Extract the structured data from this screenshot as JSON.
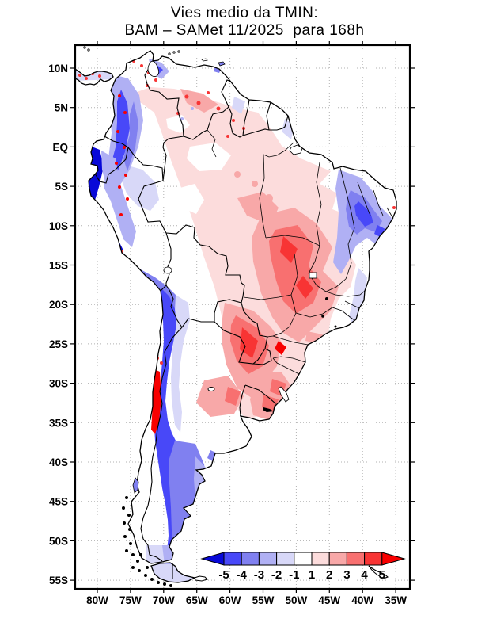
{
  "title": {
    "line1": "Vies medio da TMIN:",
    "line2": "BAM – SAMet 11/2025  para 168h"
  },
  "axes": {
    "lat_labels": [
      "10N",
      "5N",
      "EQ",
      "5S",
      "10S",
      "15S",
      "20S",
      "25S",
      "30S",
      "35S",
      "40S",
      "45S",
      "50S",
      "55S"
    ],
    "lon_labels": [
      "80W",
      "75W",
      "70W",
      "65W",
      "60W",
      "55W",
      "50W",
      "45W",
      "40W",
      "35W"
    ]
  },
  "colorbar": {
    "tick_labels": [
      "-5",
      "-4",
      "-3",
      "-2",
      "-1",
      "1",
      "2",
      "3",
      "4",
      "5"
    ],
    "colors": {
      "below": "#0808d8",
      "boxes": [
        "#4848f8",
        "#8080f0",
        "#b0b0f4",
        "#d8d8f8",
        "#ffffff",
        "#fcdcdc",
        "#f8a8a8",
        "#f87070",
        "#f83434"
      ],
      "above": "#f80000"
    }
  },
  "chart_data": {
    "type": "heatmap",
    "title": "Vies medio da TMIN: BAM – SAMet 11/2025 para 168h",
    "x_ticks": [
      "80W",
      "75W",
      "70W",
      "65W",
      "60W",
      "55W",
      "50W",
      "45W",
      "40W",
      "35W"
    ],
    "y_ticks": [
      "10N",
      "5N",
      "EQ",
      "5S",
      "10S",
      "15S",
      "20S",
      "25S",
      "30S",
      "35S",
      "40S",
      "45S",
      "50S",
      "55S"
    ],
    "colorbar_levels": [
      -5,
      -4,
      -3,
      -2,
      -1,
      1,
      2,
      3,
      4,
      5
    ],
    "colorbar_palette": [
      "#0808d8",
      "#4848f8",
      "#8080f0",
      "#b0b0f4",
      "#d8d8f8",
      "#ffffff",
      "#fcdcdc",
      "#f8a8a8",
      "#f87070",
      "#f83434",
      "#f80000"
    ],
    "grid": "dotted, every 5 degrees",
    "legend_position": "inside plot, bottom right",
    "regions_summary": [
      {
        "area": "Andes Colombia-Ecuador-Peru",
        "bias": "-5 to -2 (narrow dark blue band with red speckles)"
      },
      {
        "area": "Coastal central Chile 28S-37S",
        "bias": "+4 to +5 (strong red coastal stripe)"
      },
      {
        "area": "Andes Chile-Argentina 18S-38S",
        "bias": "-5 to -4 (dark blue band)"
      },
      {
        "area": "Patagonia 38S-52S",
        "bias": "-5 to -2 (broad blue region)"
      },
      {
        "area": "Tierra del Fuego",
        "bias": "-2 to -1 (light lavender)"
      },
      {
        "area": "Central Brazil / Paraguay / NE Argentina",
        "bias": "+2 to +5 (red cores)"
      },
      {
        "area": "Amazon basin and Venezuela interior",
        "bias": "0 to +2 (light pink with red speckles)"
      },
      {
        "area": "Northeast Brazil",
        "bias": "-4 to -1 (blue region)"
      },
      {
        "area": "Central-east Argentina and Atlantic coast",
        "bias": "-1 to +1 (white)"
      }
    ]
  }
}
